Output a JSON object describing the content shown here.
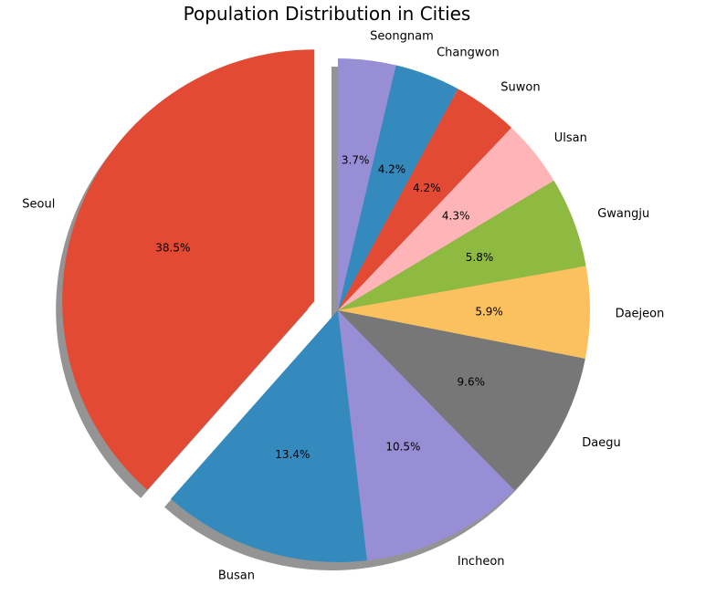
{
  "chart_data": {
    "type": "pie",
    "title": "Population Distribution in Cities",
    "labels": [
      "Seoul",
      "Busan",
      "Incheon",
      "Daegu",
      "Daejeon",
      "Gwangju",
      "Ulsan",
      "Suwon",
      "Changwon",
      "Seongnam"
    ],
    "values": [
      38.5,
      13.4,
      10.5,
      9.6,
      5.9,
      5.8,
      4.3,
      4.2,
      4.2,
      3.7
    ],
    "percent_labels": [
      "38.5%",
      "13.4%",
      "10.5%",
      "9.6%",
      "5.9%",
      "5.8%",
      "4.3%",
      "4.2%",
      "4.2%",
      "3.7%"
    ],
    "colors": [
      "#E24A33",
      "#348ABD",
      "#988ED5",
      "#777777",
      "#FBC15E",
      "#8EBA42",
      "#FFB5B8",
      "#E24A33",
      "#348ABD",
      "#988ED5"
    ],
    "exploded": [
      "Seoul"
    ],
    "shadow": true,
    "start_angle_deg": 90,
    "direction": "counterclockwise"
  }
}
